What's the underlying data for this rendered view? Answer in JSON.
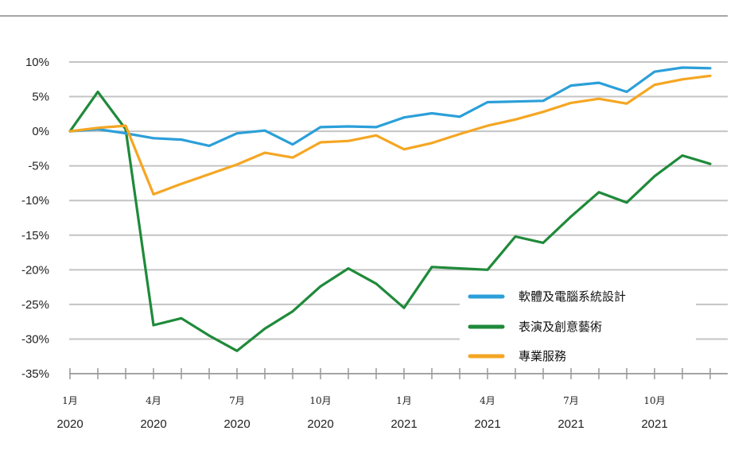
{
  "chart_data": {
    "type": "line",
    "title": "",
    "xlabel": "",
    "ylabel": "",
    "ylim": [
      -35,
      10
    ],
    "yticks": [
      "10%",
      "5%",
      "0%",
      "-5%",
      "-10%",
      "-15%",
      "-20%",
      "-25%",
      "-30%",
      "-35%"
    ],
    "ytick_values": [
      10,
      5,
      0,
      -5,
      -10,
      -15,
      -20,
      -25,
      -30,
      -35
    ],
    "x_months": [
      "2020-01",
      "2020-02",
      "2020-03",
      "2020-04",
      "2020-05",
      "2020-06",
      "2020-07",
      "2020-08",
      "2020-09",
      "2020-10",
      "2020-11",
      "2020-12",
      "2021-01",
      "2021-02",
      "2021-03",
      "2021-04",
      "2021-05",
      "2021-06",
      "2021-07",
      "2021-08",
      "2021-09",
      "2021-10",
      "2021-11",
      "2021-12"
    ],
    "x_tick_labels": [
      {
        "month": "1月",
        "year": "2020",
        "index": 0
      },
      {
        "month": "4月",
        "year": "2020",
        "index": 3
      },
      {
        "month": "7月",
        "year": "2020",
        "index": 6
      },
      {
        "month": "10月",
        "year": "2020",
        "index": 9
      },
      {
        "month": "1月",
        "year": "2021",
        "index": 12
      },
      {
        "month": "4月",
        "year": "2021",
        "index": 15
      },
      {
        "month": "7月",
        "year": "2021",
        "index": 18
      },
      {
        "month": "10月",
        "year": "2021",
        "index": 21
      }
    ],
    "grid": true,
    "legend_position": "bottom-right",
    "series": [
      {
        "name": "軟體及電腦系統設計",
        "color": "#2b9fd9",
        "values": [
          0.0,
          0.3,
          -0.3,
          -1.0,
          -1.2,
          -2.1,
          -0.3,
          0.1,
          -1.9,
          0.6,
          0.7,
          0.6,
          2.0,
          2.6,
          2.1,
          4.2,
          4.3,
          4.4,
          6.6,
          7.0,
          5.7,
          8.6,
          9.2,
          9.1
        ]
      },
      {
        "name": "表演及創意藝術",
        "color": "#1f8a3a",
        "values": [
          0.0,
          5.7,
          0.3,
          -28.0,
          -27.0,
          -29.5,
          -31.7,
          -28.5,
          -26.0,
          -22.4,
          -19.8,
          -22.0,
          -25.5,
          -19.6,
          -19.8,
          -20.0,
          -15.2,
          -16.1,
          -12.3,
          -8.8,
          -10.3,
          -6.5,
          -3.5,
          -4.7
        ]
      },
      {
        "name": "專業服務",
        "color": "#f5a623",
        "values": [
          0.0,
          0.5,
          0.8,
          -9.1,
          -7.6,
          -6.2,
          -4.8,
          -3.1,
          -3.8,
          -1.6,
          -1.4,
          -0.6,
          -2.6,
          -1.7,
          -0.4,
          0.8,
          1.7,
          2.8,
          4.1,
          4.7,
          4.0,
          6.7,
          7.5,
          8.0
        ]
      }
    ]
  }
}
